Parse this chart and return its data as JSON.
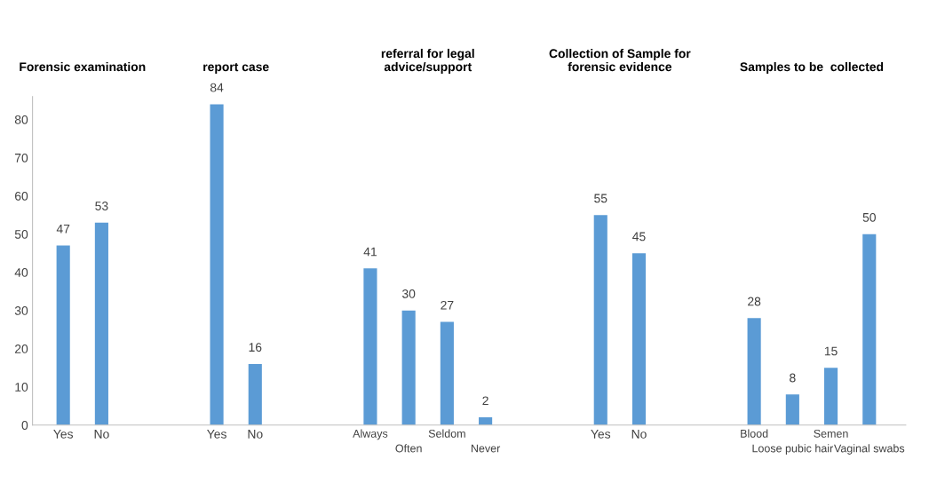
{
  "chart_data": {
    "type": "bar",
    "categories": [
      "Yes",
      "No",
      null,
      null,
      "Yes",
      "No",
      null,
      null,
      "Always",
      "Often",
      "Seldom",
      "Never",
      null,
      null,
      "Yes",
      "No",
      null,
      null,
      "Blood",
      "Loose pubic hair",
      "Semen",
      "Vaginal swabs"
    ],
    "values": [
      47,
      53,
      null,
      null,
      84,
      16,
      null,
      null,
      41,
      30,
      27,
      2,
      null,
      null,
      55,
      45,
      null,
      null,
      28,
      8,
      15,
      50
    ],
    "color": "#5b9bd5",
    "ylim": [
      0,
      86
    ],
    "yticks": [
      0,
      10,
      20,
      30,
      40,
      50,
      60,
      70,
      80
    ],
    "data_labels": true,
    "grid": false,
    "annotations": [
      "Forensic examination",
      "report case",
      "referral for legal\nadvice/support",
      "Collection of Sample for\nforensic evidence",
      "Samples to be  collected"
    ]
  }
}
